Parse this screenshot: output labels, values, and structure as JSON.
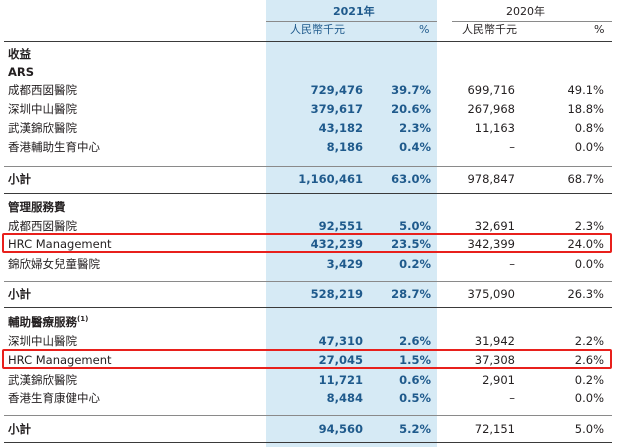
{
  "header": {
    "year_2021": "2021年",
    "year_2020": "2020年",
    "currency": "人民幣千元",
    "percent": "%"
  },
  "revenue": {
    "title": "收益",
    "ars_title": "ARS",
    "rows": [
      {
        "label": "成都西囡醫院",
        "v2021": "729,476",
        "p2021": "39.7%",
        "v2020": "699,716",
        "p2020": "49.1%"
      },
      {
        "label": "深圳中山醫院",
        "v2021": "379,617",
        "p2021": "20.6%",
        "v2020": "267,968",
        "p2020": "18.8%"
      },
      {
        "label": "武漢錦欣醫院",
        "v2021": "43,182",
        "p2021": "2.3%",
        "v2020": "11,163",
        "p2020": "0.8%"
      },
      {
        "label": "香港輔助生育中心",
        "v2021": "8,186",
        "p2021": "0.4%",
        "v2020": "–",
        "p2020": "0.0%"
      }
    ],
    "subtotal": {
      "label": "小計",
      "v2021": "1,160,461",
      "p2021": "63.0%",
      "v2020": "978,847",
      "p2020": "68.7%"
    }
  },
  "management": {
    "title": "管理服務費",
    "rows": [
      {
        "label": "成都西囡醫院",
        "v2021": "92,551",
        "p2021": "5.0%",
        "v2020": "32,691",
        "p2020": "2.3%"
      },
      {
        "label": "HRC Management",
        "v2021": "432,239",
        "p2021": "23.5%",
        "v2020": "342,399",
        "p2020": "24.0%"
      },
      {
        "label": "錦欣婦女兒童醫院",
        "v2021": "3,429",
        "p2021": "0.2%",
        "v2020": "–",
        "p2020": "0.0%"
      }
    ],
    "subtotal": {
      "label": "小計",
      "v2021": "528,219",
      "p2021": "28.7%",
      "v2020": "375,090",
      "p2020": "26.3%"
    }
  },
  "ancillary": {
    "title": "輔助醫療服務",
    "title_note": "(1)",
    "rows": [
      {
        "label": "深圳中山醫院",
        "v2021": "47,310",
        "p2021": "2.6%",
        "v2020": "31,942",
        "p2020": "2.2%"
      },
      {
        "label": "HRC Management",
        "v2021": "27,045",
        "p2021": "1.5%",
        "v2020": "37,308",
        "p2020": "2.6%"
      },
      {
        "label": "武漢錦欣醫院",
        "v2021": "11,721",
        "p2021": "0.6%",
        "v2020": "2,901",
        "p2020": "0.2%"
      },
      {
        "label": "香港生育康健中心",
        "v2021": "8,484",
        "p2021": "0.5%",
        "v2020": "–",
        "p2020": "0.0%"
      }
    ],
    "subtotal": {
      "label": "小計",
      "v2021": "94,560",
      "p2021": "5.2%",
      "v2020": "72,151",
      "p2020": "5.0%"
    }
  },
  "colors": {
    "accent": "#1f5a8c",
    "column_fill": "#d6eaf5",
    "highlight": "#e8201c"
  }
}
